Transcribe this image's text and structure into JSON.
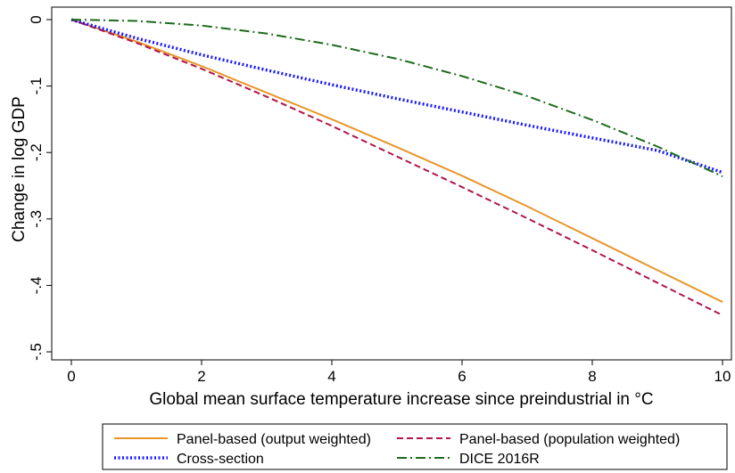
{
  "chart_data": {
    "type": "line",
    "title": "",
    "xlabel": "Global mean surface temperature increase since preindustrial in °C",
    "ylabel": "Change in log GDP",
    "xlim": [
      0,
      10
    ],
    "ylim": [
      -0.5,
      0
    ],
    "xticks": [
      0,
      2,
      4,
      6,
      8,
      10
    ],
    "yticks": [
      0,
      -0.1,
      -0.2,
      -0.3,
      -0.4,
      -0.5
    ],
    "xtick_labels": [
      "0",
      "2",
      "4",
      "6",
      "8",
      "10"
    ],
    "ytick_labels": [
      "0",
      "-.1",
      "-.2",
      "-.3",
      "-.4",
      "-.5"
    ],
    "grid": false,
    "legend_position": "bottom",
    "series": [
      {
        "name": "Panel-based (output weighted)",
        "color": "#e8962a",
        "style": "solid",
        "x": [
          0,
          1,
          2,
          3,
          4,
          5,
          6,
          7,
          8,
          9,
          10
        ],
        "y": [
          0,
          -0.033,
          -0.07,
          -0.11,
          -0.15,
          -0.192,
          -0.235,
          -0.281,
          -0.329,
          -0.377,
          -0.425
        ]
      },
      {
        "name": "Panel-based (population weighted)",
        "color": "#b1154a",
        "style": "dashed",
        "x": [
          0,
          1,
          2,
          3,
          4,
          5,
          6,
          7,
          8,
          9,
          10
        ],
        "y": [
          0,
          -0.035,
          -0.074,
          -0.116,
          -0.16,
          -0.206,
          -0.252,
          -0.299,
          -0.347,
          -0.396,
          -0.445
        ]
      },
      {
        "name": "Cross-section",
        "color": "#1a1aff",
        "style": "dotted",
        "x": [
          0,
          1,
          2,
          3,
          4,
          5,
          6,
          7,
          8,
          9,
          10
        ],
        "y": [
          0,
          -0.028,
          -0.053,
          -0.076,
          -0.098,
          -0.119,
          -0.139,
          -0.159,
          -0.178,
          -0.197,
          -0.23
        ]
      },
      {
        "name": "DICE 2016R",
        "color": "#1b6b1b",
        "style": "dashdot",
        "x": [
          0,
          1,
          2,
          3,
          4,
          5,
          6,
          7,
          8,
          9,
          10
        ],
        "y": [
          0,
          -0.002,
          -0.009,
          -0.021,
          -0.038,
          -0.059,
          -0.085,
          -0.115,
          -0.151,
          -0.191,
          -0.236
        ]
      }
    ]
  }
}
